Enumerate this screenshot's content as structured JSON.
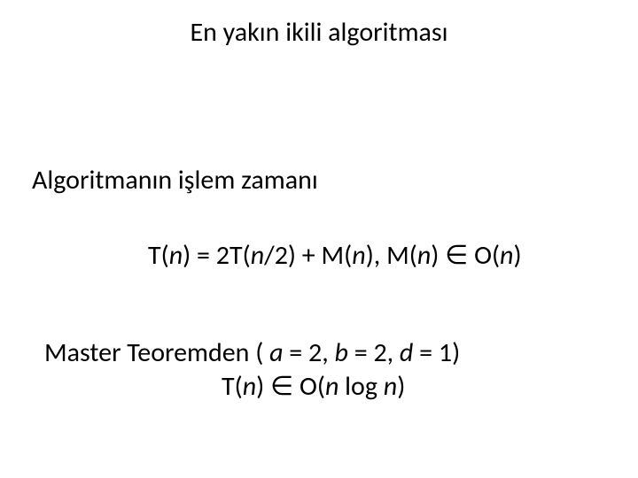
{
  "title": "En yakın ikili algoritması",
  "subtitle": "Algoritmanın işlem zamanı",
  "formula1": {
    "p1": "T(",
    "n1": "n",
    "p2": ") = 2T(",
    "n2": "n",
    "p3": "/2) + M(",
    "n3": "n",
    "p4": "),   M(",
    "n4": "n",
    "p5": ") ",
    "in": "∈",
    "p6": " O(",
    "n5": "n",
    "p7": ")"
  },
  "master": {
    "p1": "Master Teoremden ( ",
    "a": "a",
    "p2": " = 2, ",
    "b": "b",
    "p3": " = 2, ",
    "d": "d",
    "p4": " = 1)"
  },
  "formula2": {
    "p1": "T(",
    "n1": "n",
    "p2": ") ",
    "in": "∈",
    "p3": " O(",
    "n2": "n",
    "p4": " log ",
    "n3": "n",
    "p5": ")"
  }
}
